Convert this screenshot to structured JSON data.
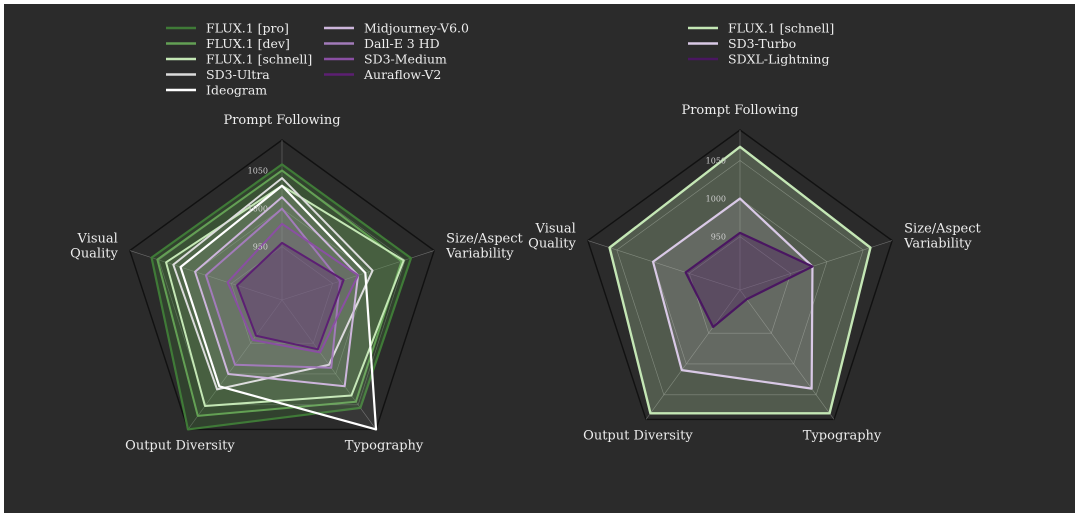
{
  "chart_data": [
    {
      "type": "radar",
      "axes": [
        "Prompt Following",
        "Size/Aspect Variability",
        "Typography",
        "Output Diversity",
        "Visual Quality"
      ],
      "axis_labels": [
        [
          "Prompt Following"
        ],
        [
          "Size/Aspect",
          "Variability"
        ],
        [
          "Typography"
        ],
        [
          "Output Diversity"
        ],
        [
          "Visual",
          "Quality"
        ]
      ],
      "rlim": [
        880,
        1090
      ],
      "ticks": [
        {
          "value": 950,
          "label": "950"
        },
        {
          "value": 1000,
          "label": "1000"
        },
        {
          "value": 1050,
          "label": "1050"
        }
      ],
      "grid": true,
      "legend_columns": 2,
      "series": [
        {
          "name": "FLUX.1 [pro]",
          "color": "#3f7a37",
          "fill_opacity": 0.28,
          "stroke_width": 2.2,
          "values": [
            1058,
            1058,
            1055,
            1090,
            1060
          ]
        },
        {
          "name": "FLUX.1 [dev]",
          "color": "#63a054",
          "fill_opacity": 0.16,
          "stroke_width": 2.0,
          "values": [
            1050,
            1045,
            1045,
            1068,
            1052
          ]
        },
        {
          "name": "FLUX.1 [schnell]",
          "color": "#c4e7b5",
          "fill_opacity": 0.1,
          "stroke_width": 2.0,
          "values": [
            1030,
            1048,
            1035,
            1052,
            1040
          ]
        },
        {
          "name": "SD3-Ultra",
          "color": "#dcdcdc",
          "fill_opacity": 0.06,
          "stroke_width": 2.0,
          "values": [
            1040,
            1005,
            985,
            1025,
            1030
          ]
        },
        {
          "name": "Ideogram",
          "color": "#ffffff",
          "fill_opacity": 0.06,
          "stroke_width": 2.2,
          "values": [
            1030,
            995,
            1090,
            1020,
            1020
          ]
        },
        {
          "name": "Midjourney-V6.0",
          "color": "#cdb6dc",
          "fill_opacity": 0.08,
          "stroke_width": 2.0,
          "values": [
            1015,
            985,
            1020,
            1000,
            1000
          ]
        },
        {
          "name": "Dall-E 3 HD",
          "color": "#a27bba",
          "fill_opacity": 0.1,
          "stroke_width": 2.0,
          "values": [
            1000,
            960,
            990,
            985,
            985
          ]
        },
        {
          "name": "SD3-Medium",
          "color": "#8a4fa3",
          "fill_opacity": 0.12,
          "stroke_width": 2.0,
          "values": [
            980,
            985,
            965,
            945,
            955
          ]
        },
        {
          "name": "Auraflow-V2",
          "color": "#5c1f73",
          "fill_opacity": 0.3,
          "stroke_width": 2.0,
          "values": [
            955,
            965,
            960,
            938,
            942
          ]
        }
      ]
    },
    {
      "type": "radar",
      "axes": [
        "Prompt Following",
        "Size/Aspect Variability",
        "Typography",
        "Output Diversity",
        "Visual Quality"
      ],
      "axis_labels": [
        [
          "Prompt Following"
        ],
        [
          "Size/Aspect",
          "Variability"
        ],
        [
          "Typography"
        ],
        [
          "Output Diversity"
        ],
        [
          "Visual",
          "Quality"
        ]
      ],
      "rlim": [
        880,
        1090
      ],
      "ticks": [
        {
          "value": 950,
          "label": "950"
        },
        {
          "value": 1000,
          "label": "1000"
        },
        {
          "value": 1050,
          "label": "1050"
        }
      ],
      "grid": true,
      "legend_columns": 1,
      "series": [
        {
          "name": "FLUX.1 [schnell]",
          "color": "#c4e7b5",
          "fill_opacity": 0.25,
          "stroke_width": 2.4,
          "values": [
            1068,
            1060,
            1080,
            1080,
            1060
          ]
        },
        {
          "name": "SD3-Turbo",
          "color": "#d9c9e6",
          "fill_opacity": 0.14,
          "stroke_width": 2.2,
          "values": [
            1000,
            980,
            1040,
            1010,
            1000
          ]
        },
        {
          "name": "SDXL-Lightning",
          "color": "#4a1661",
          "fill_opacity": 0.35,
          "stroke_width": 2.2,
          "values": [
            955,
            980,
            895,
            940,
            955
          ]
        }
      ]
    }
  ]
}
